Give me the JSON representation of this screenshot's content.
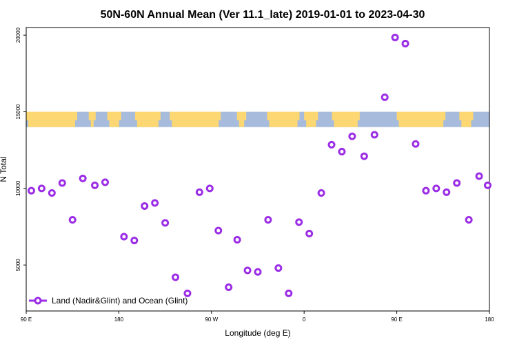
{
  "chart_data": {
    "type": "scatter",
    "title": "50N-60N Annual Mean (Ver 11.1_late)   2019-01-01 to 2023-04-30",
    "xlabel": "Longitude (deg E)",
    "ylabel": "N Total",
    "xlim": [
      -90,
      180
    ],
    "ylim": [
      2000,
      20500
    ],
    "xticks": [
      {
        "value": -90,
        "label": "90 E"
      },
      {
        "value": -36,
        "label": "180"
      },
      {
        "value": 18,
        "label": "90 W"
      },
      {
        "value": 72,
        "label": "0"
      },
      {
        "value": 126,
        "label": "90 E"
      },
      {
        "value": 180,
        "label": "180"
      }
    ],
    "yticks": [
      {
        "value": 5000,
        "label": "5000"
      },
      {
        "value": 10000,
        "label": "10000"
      },
      {
        "value": 15000,
        "label": "15000"
      },
      {
        "value": 20000,
        "label": "20000"
      }
    ],
    "map_band": {
      "ymin": 14000,
      "ymax": 15000,
      "ocean_color": "#a7bbdd",
      "land_color": "#fdd772"
    },
    "series": [
      {
        "name": "Land (Nadir&Glint) and Ocean (Glint)",
        "color": "#9b2de6",
        "x": [
          -87,
          -81,
          -75,
          -69,
          -63,
          -57,
          -50,
          -44,
          -33,
          -27,
          -21,
          -15,
          -9,
          -3,
          4,
          11,
          17,
          22,
          28,
          33,
          39,
          45,
          51,
          57,
          63,
          69,
          75,
          82,
          88,
          94,
          100,
          107,
          113,
          119,
          125,
          131,
          137,
          143,
          149,
          155,
          161,
          168,
          174,
          179
        ],
        "y": [
          9850,
          10000,
          9700,
          10350,
          7950,
          10650,
          10200,
          10400,
          6850,
          6600,
          8850,
          9050,
          7750,
          4200,
          3150,
          9750,
          10000,
          7250,
          3550,
          6650,
          4650,
          4550,
          7950,
          4800,
          3150,
          7800,
          7050,
          9700,
          12850,
          12400,
          13400,
          12100,
          13500,
          15950,
          19850,
          19450,
          12900,
          9850,
          10000,
          9750,
          10350,
          7950,
          10800,
          10200
        ]
      }
    ],
    "legend": {
      "position": "bottom-left"
    }
  }
}
